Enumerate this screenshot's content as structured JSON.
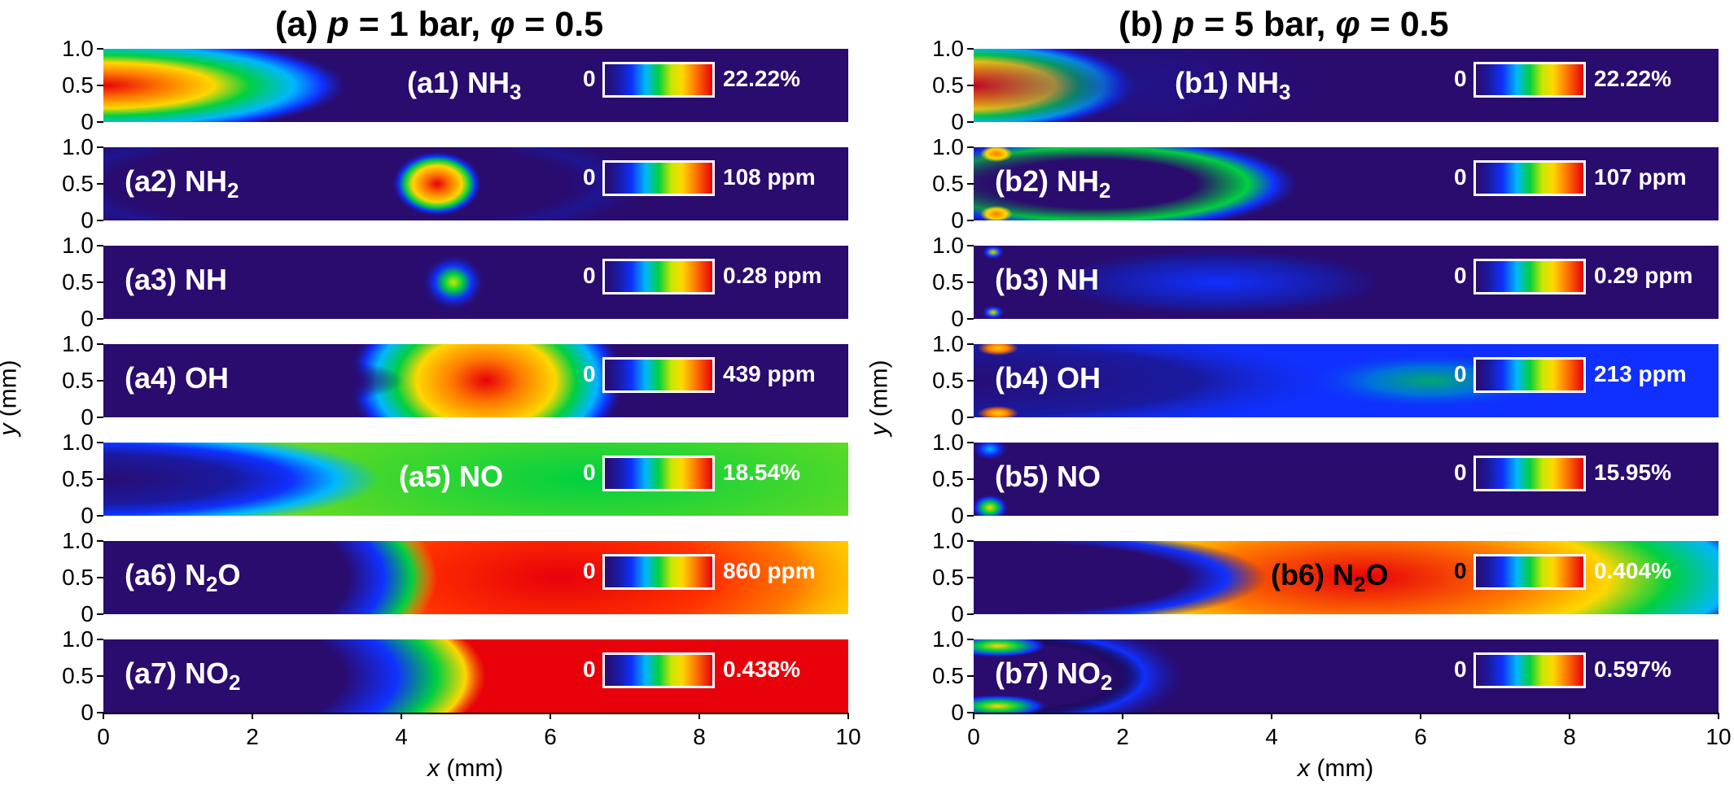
{
  "chart_data": [
    {
      "type": "heatmap",
      "panel_title": [
        "(a) ",
        "p",
        " = 1 bar, ",
        "φ",
        " = 0.5"
      ],
      "xlabel": [
        "x",
        " (mm)"
      ],
      "ylabel": [
        "y",
        " (mm)"
      ],
      "xlim": [
        0,
        10
      ],
      "ylim": [
        0,
        1
      ],
      "x_ticks": [
        "0",
        "2",
        "4",
        "6",
        "8",
        "10"
      ],
      "y_ticks": [
        "1.0",
        "0.5",
        "0"
      ],
      "colormap": [
        "#2a0b6e",
        "#1a1aa0",
        "#1030ff",
        "#00b7ff",
        "#00d040",
        "#c8e800",
        "#ffd700",
        "#ff7a00",
        "#e8000a"
      ],
      "subplots": [
        {
          "label": "(a1) NH",
          "sub": "3",
          "cb_min": "0",
          "cb_max": "22.22%"
        },
        {
          "label": "(a2) NH",
          "sub": "2",
          "cb_min": "0",
          "cb_max": "108 ppm"
        },
        {
          "label": "(a3) NH",
          "sub": "",
          "cb_min": "0",
          "cb_max": "0.28 ppm"
        },
        {
          "label": "(a4) OH",
          "sub": "",
          "cb_min": "0",
          "cb_max": "439 ppm"
        },
        {
          "label": "(a5) NO",
          "sub": "",
          "cb_min": "0",
          "cb_max": "18.54%"
        },
        {
          "label": "(a6) N",
          "sub": "2",
          "tail": "O",
          "cb_min": "0",
          "cb_max": "860 ppm"
        },
        {
          "label": "(a7) NO",
          "sub": "2",
          "cb_min": "0",
          "cb_max": "0.438%"
        }
      ]
    },
    {
      "type": "heatmap",
      "panel_title": [
        "(b) ",
        "p",
        " = 5 bar, ",
        "φ",
        " = 0.5"
      ],
      "xlabel": [
        "x",
        " (mm)"
      ],
      "ylabel": [
        "y",
        " (mm)"
      ],
      "xlim": [
        0,
        10
      ],
      "ylim": [
        0,
        1
      ],
      "x_ticks": [
        "0",
        "2",
        "4",
        "6",
        "8",
        "10"
      ],
      "y_ticks": [
        "1.0",
        "0.5",
        "0"
      ],
      "subplots": [
        {
          "label": "(b1) NH",
          "sub": "3",
          "cb_min": "0",
          "cb_max": "22.22%"
        },
        {
          "label": "(b2) NH",
          "sub": "2",
          "cb_min": "0",
          "cb_max": "107 ppm"
        },
        {
          "label": "(b3) NH",
          "sub": "",
          "cb_min": "0",
          "cb_max": "0.29 ppm"
        },
        {
          "label": "(b4) OH",
          "sub": "",
          "cb_min": "0",
          "cb_max": "213 ppm"
        },
        {
          "label": "(b5) NO",
          "sub": "",
          "cb_min": "0",
          "cb_max": "15.95%"
        },
        {
          "label": "(b6) N",
          "sub": "2",
          "tail": "O",
          "cb_min": "0",
          "cb_max": "0.404%"
        },
        {
          "label": "(b7) NO",
          "sub": "2",
          "cb_min": "0",
          "cb_max": "0.597%"
        }
      ]
    }
  ]
}
